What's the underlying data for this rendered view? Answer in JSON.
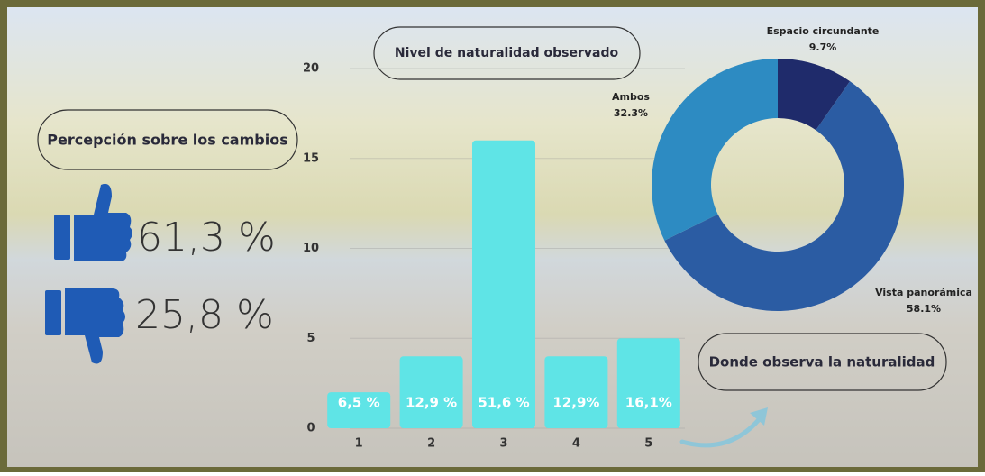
{
  "perception": {
    "title": "Percepción sobre los cambios",
    "positive": "61,3 %",
    "negative": "25,8 %"
  },
  "chart_data": [
    {
      "type": "bar",
      "title": "Nivel de naturalidad observado",
      "categories": [
        "1",
        "2",
        "3",
        "4",
        "5"
      ],
      "values": [
        2,
        4,
        16,
        4,
        5
      ],
      "value_labels": [
        "6,5 %",
        "12,9 %",
        "51,6 %",
        "12,9%",
        "16,1%"
      ],
      "color": "#5fe4e6",
      "ylim": [
        0,
        20
      ],
      "yticks": [
        0,
        5,
        10,
        15,
        20
      ],
      "grid": true
    },
    {
      "type": "pie",
      "title": "Donde observa la naturalidad",
      "categories": [
        "Espacio circundante",
        "Vista panorámica",
        "Ambos"
      ],
      "values": [
        9.7,
        58.1,
        32.3
      ],
      "value_labels": [
        "9.7%",
        "58.1%",
        "32.3%"
      ],
      "colors": [
        "#1f2b6b",
        "#2b5ca3",
        "#2d8bc2"
      ]
    }
  ]
}
